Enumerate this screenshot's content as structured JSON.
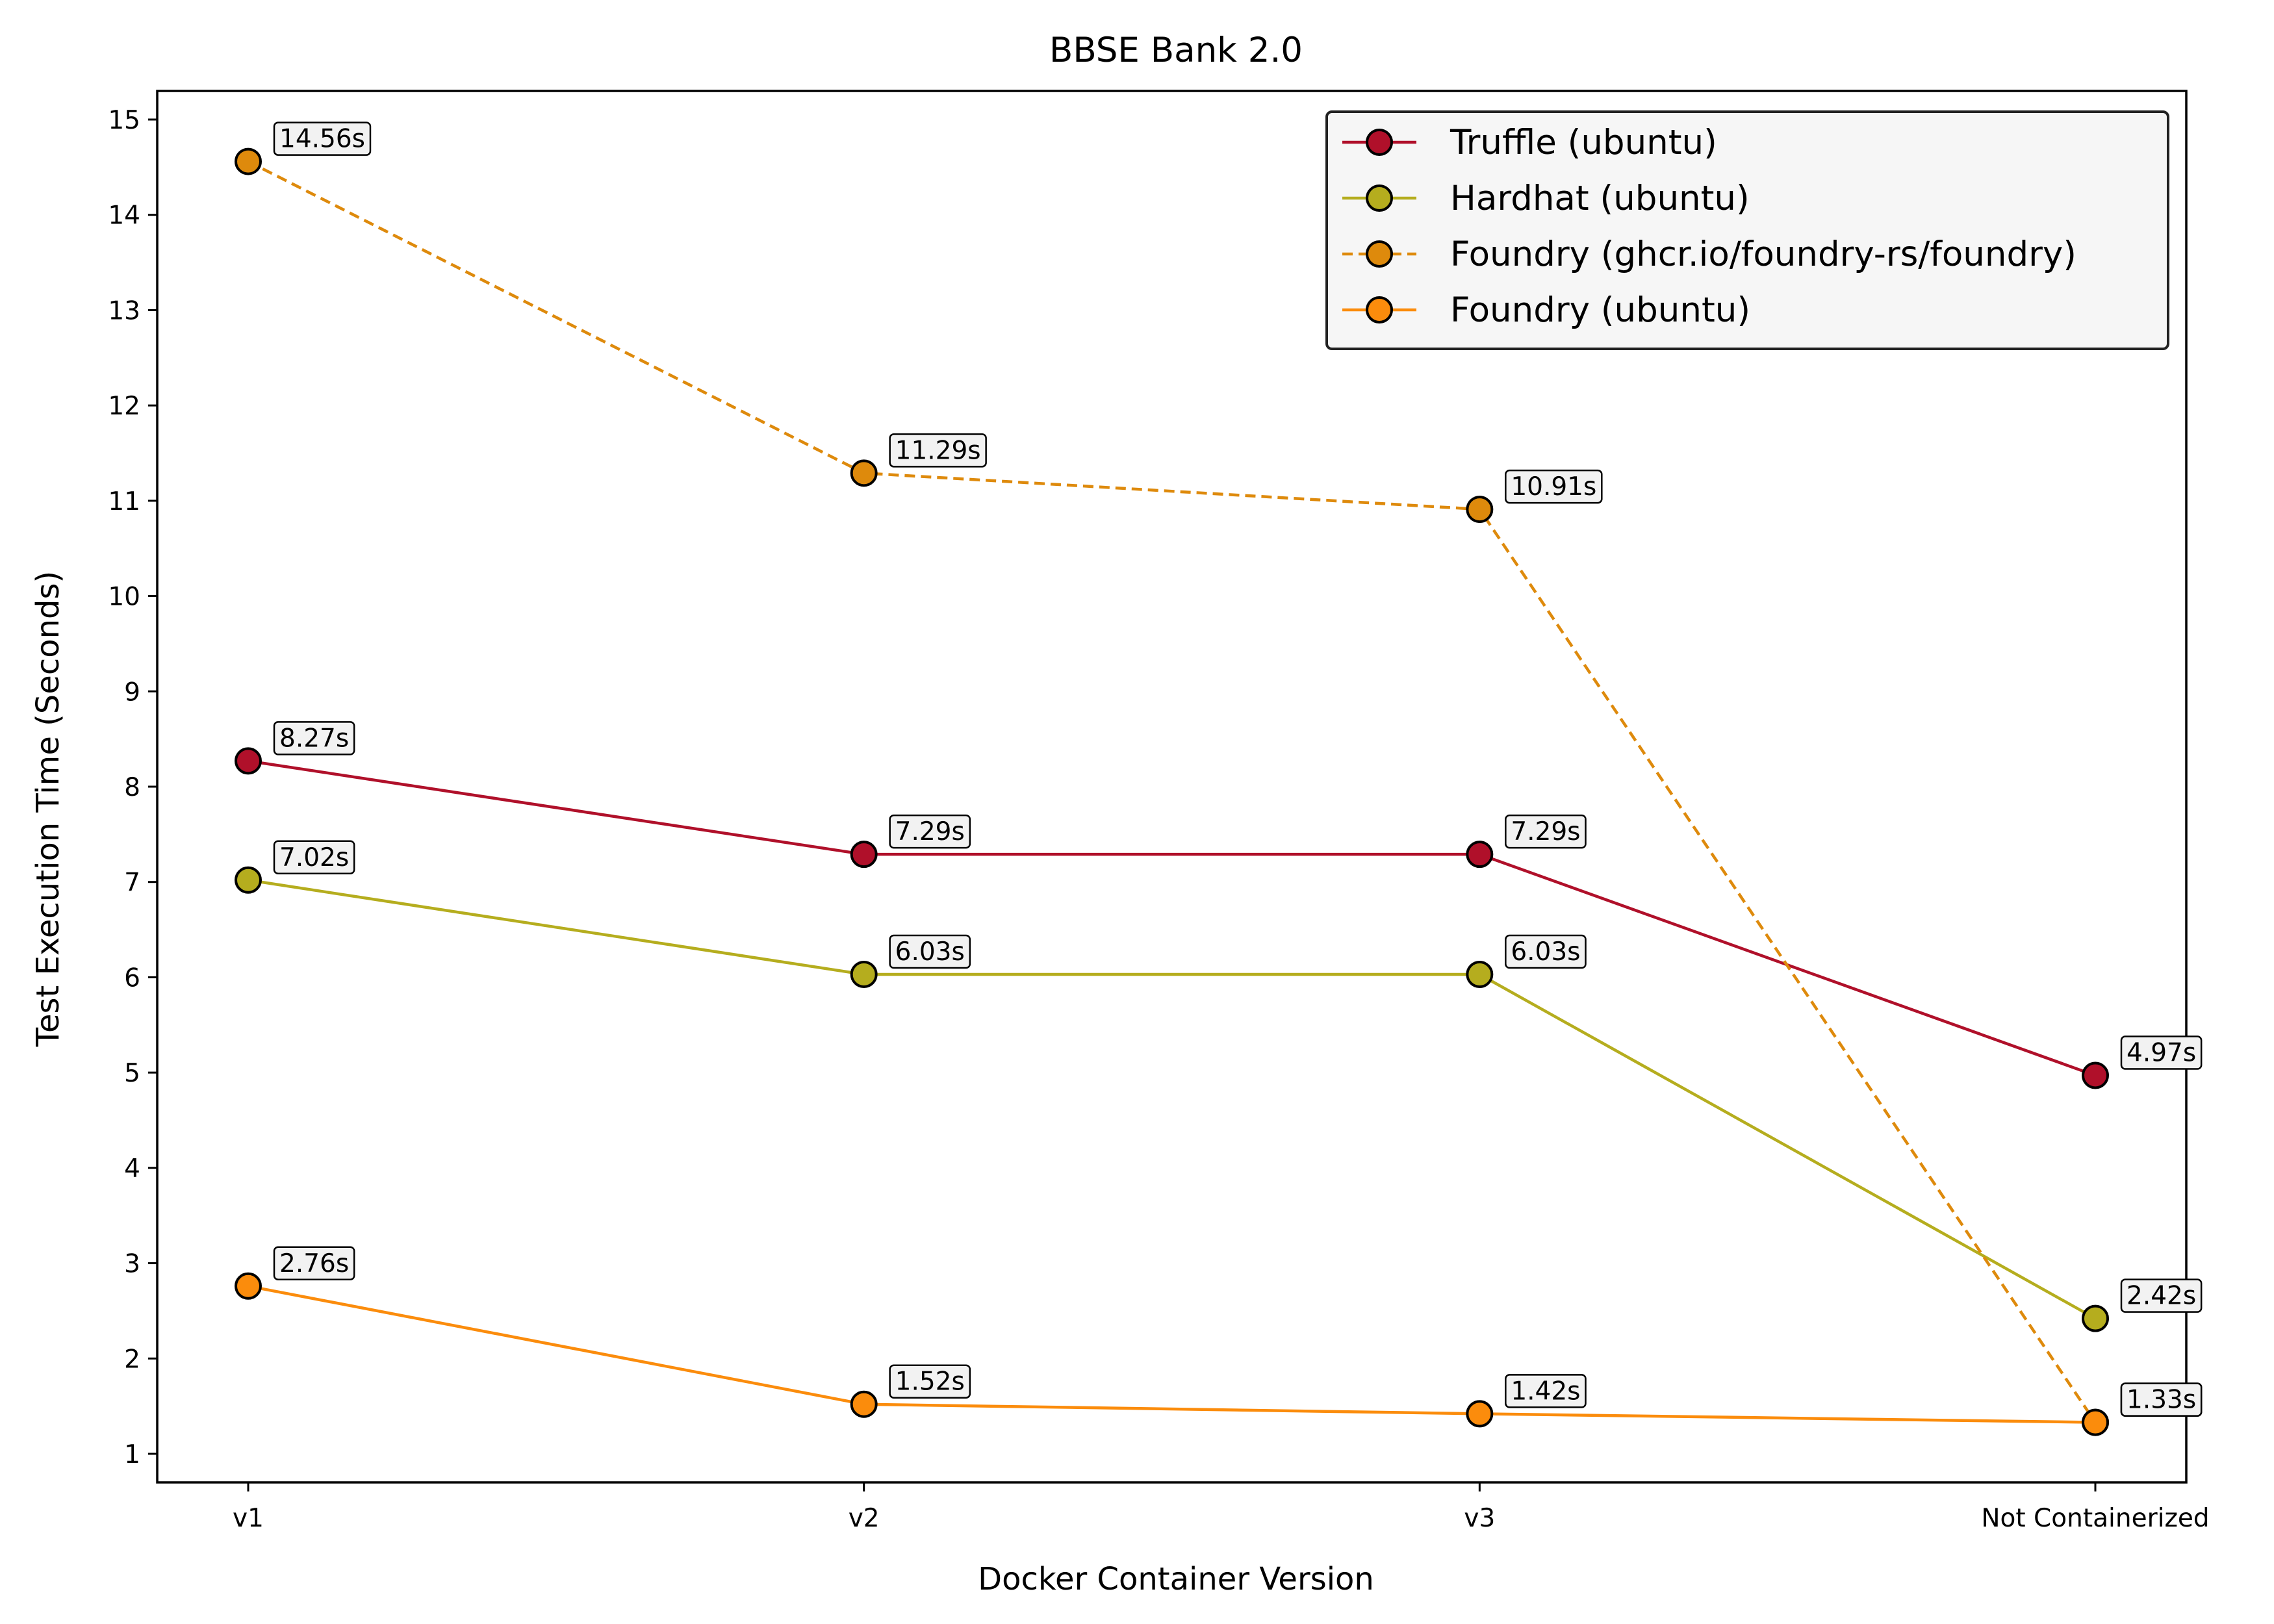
{
  "chart_data": {
    "type": "line",
    "title": "BBSE Bank 2.0",
    "xlabel": "Docker Container Version",
    "ylabel": "Test Execution Time (Seconds)",
    "categories": [
      "v1",
      "v2",
      "v3",
      "Not Containerized"
    ],
    "ylim": [
      0.7,
      15.3
    ],
    "yticks": [
      1,
      2,
      3,
      4,
      5,
      6,
      7,
      8,
      9,
      10,
      11,
      12,
      13,
      14,
      15
    ],
    "grid": false,
    "legend_position": "top-right",
    "value_suffix": "s",
    "series": [
      {
        "name": "Truffle (ubuntu)",
        "color": "#b0102a",
        "dashed": false,
        "values": [
          8.27,
          7.29,
          7.29,
          4.97
        ]
      },
      {
        "name": "Hardhat (ubuntu)",
        "color": "#b5ad1e",
        "dashed": false,
        "values": [
          7.02,
          6.03,
          6.03,
          2.42
        ]
      },
      {
        "name": "Foundry (ghcr.io/foundry-rs/foundry)",
        "color": "#de8a0c",
        "dashed": true,
        "values": [
          14.56,
          11.29,
          10.91,
          1.33
        ]
      },
      {
        "name": "Foundry (ubuntu)",
        "color": "#fb8c0c",
        "dashed": false,
        "values": [
          2.76,
          1.52,
          1.42,
          1.33
        ]
      }
    ]
  }
}
